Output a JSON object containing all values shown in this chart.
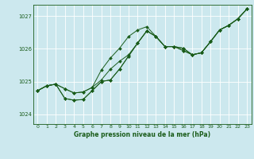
{
  "title": "Graphe pression niveau de la mer (hPa)",
  "bg_color": "#cce8ee",
  "line_color": "#1a5c1a",
  "grid_color": "#ffffff",
  "xlim": [
    -0.5,
    23.5
  ],
  "ylim": [
    1023.7,
    1027.35
  ],
  "yticks": [
    1024,
    1025,
    1026,
    1027
  ],
  "xticks": [
    0,
    1,
    2,
    3,
    4,
    5,
    6,
    7,
    8,
    9,
    10,
    11,
    12,
    13,
    14,
    15,
    16,
    17,
    18,
    19,
    20,
    21,
    22,
    23
  ],
  "series": [
    [
      1024.72,
      1024.87,
      1024.92,
      1024.78,
      1024.65,
      1024.68,
      1024.82,
      1025.05,
      1025.38,
      1025.62,
      1025.82,
      1026.18,
      1026.55,
      1026.38,
      1026.07,
      1026.07,
      1026.02,
      1025.82,
      1025.88,
      1026.22,
      1026.58,
      1026.72,
      1026.92,
      1027.22
    ],
    [
      1024.72,
      1024.87,
      1024.92,
      1024.78,
      1024.65,
      1024.68,
      1024.82,
      1025.35,
      1025.72,
      1026.02,
      1026.38,
      1026.58,
      1026.68,
      1026.38,
      1026.07,
      1026.07,
      1025.95,
      1025.82,
      1025.88,
      1026.22,
      1026.58,
      1026.72,
      1026.92,
      1027.22
    ],
    [
      1024.72,
      1024.87,
      1024.92,
      1024.48,
      1024.43,
      1024.45,
      1024.72,
      1025.0,
      1025.05,
      1025.38,
      1025.78,
      1026.18,
      1026.55,
      1026.38,
      1026.07,
      1026.07,
      1026.02,
      1025.82,
      1025.88,
      1026.22,
      1026.58,
      1026.72,
      1026.92,
      1027.22
    ],
    [
      1024.72,
      1024.87,
      1024.92,
      1024.48,
      1024.43,
      1024.45,
      1024.72,
      1025.0,
      1025.05,
      1025.38,
      1025.78,
      1026.18,
      1026.55,
      1026.38,
      1026.07,
      1026.07,
      1025.95,
      1025.82,
      1025.88,
      1026.22,
      1026.58,
      1026.72,
      1026.92,
      1027.22
    ]
  ]
}
